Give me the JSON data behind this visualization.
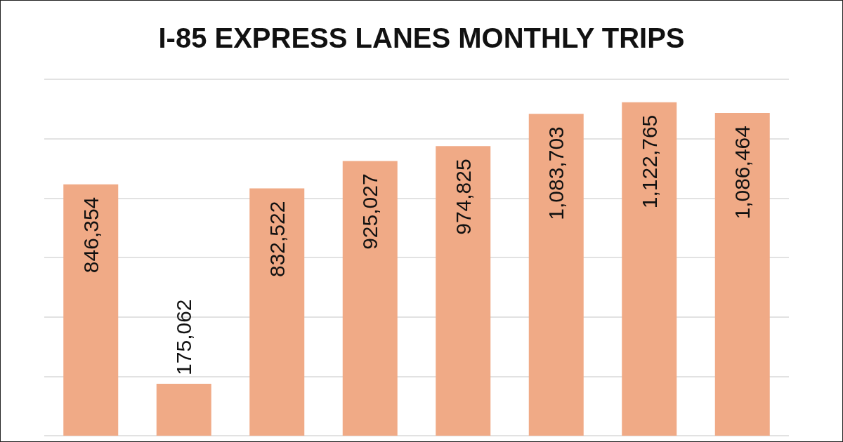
{
  "chart_data": {
    "type": "bar",
    "title": "I-85 EXPRESS LANES MONTHLY TRIPS",
    "categories": [
      null,
      null,
      null,
      null,
      null,
      null,
      null,
      null
    ],
    "values": [
      846354,
      175062,
      832522,
      925027,
      974825,
      1083703,
      1122765,
      1086464
    ],
    "value_labels": [
      "846,354",
      "175,062",
      "832,522",
      "925,027",
      "974,825",
      "1,083,703",
      "1,122,765",
      "1,086,464"
    ],
    "color": "#f0aa86",
    "grid": "y"
  }
}
